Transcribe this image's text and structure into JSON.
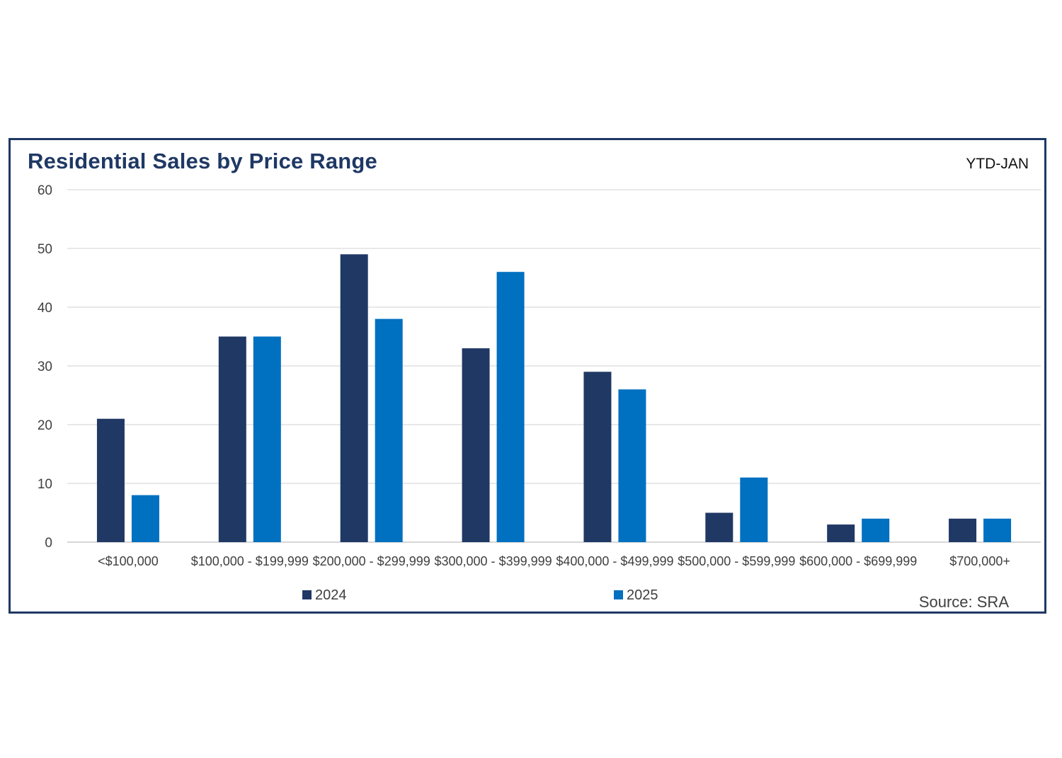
{
  "chart": {
    "title": "Residential Sales by Price Range",
    "period": "YTD-JAN",
    "source": "Source: SRA"
  },
  "chart_data": {
    "type": "bar",
    "title": "Residential Sales by Price Range",
    "xlabel": "",
    "ylabel": "",
    "ylim": [
      0,
      60
    ],
    "yticks": [
      0,
      10,
      20,
      30,
      40,
      50,
      60
    ],
    "grid": true,
    "legend_position": "bottom",
    "categories": [
      "<$100,000",
      "$100,000 - $199,999",
      "$200,000 - $299,999",
      "$300,000 - $399,999",
      "$400,000 - $499,999",
      "$500,000 - $599,999",
      "$600,000 - $699,999",
      "$700,000+"
    ],
    "series": [
      {
        "name": "2024",
        "color": "#203864",
        "values": [
          21,
          35,
          49,
          33,
          29,
          5,
          3,
          4
        ]
      },
      {
        "name": "2025",
        "color": "#0070c0",
        "values": [
          8,
          35,
          38,
          46,
          26,
          11,
          4,
          4
        ]
      }
    ]
  }
}
